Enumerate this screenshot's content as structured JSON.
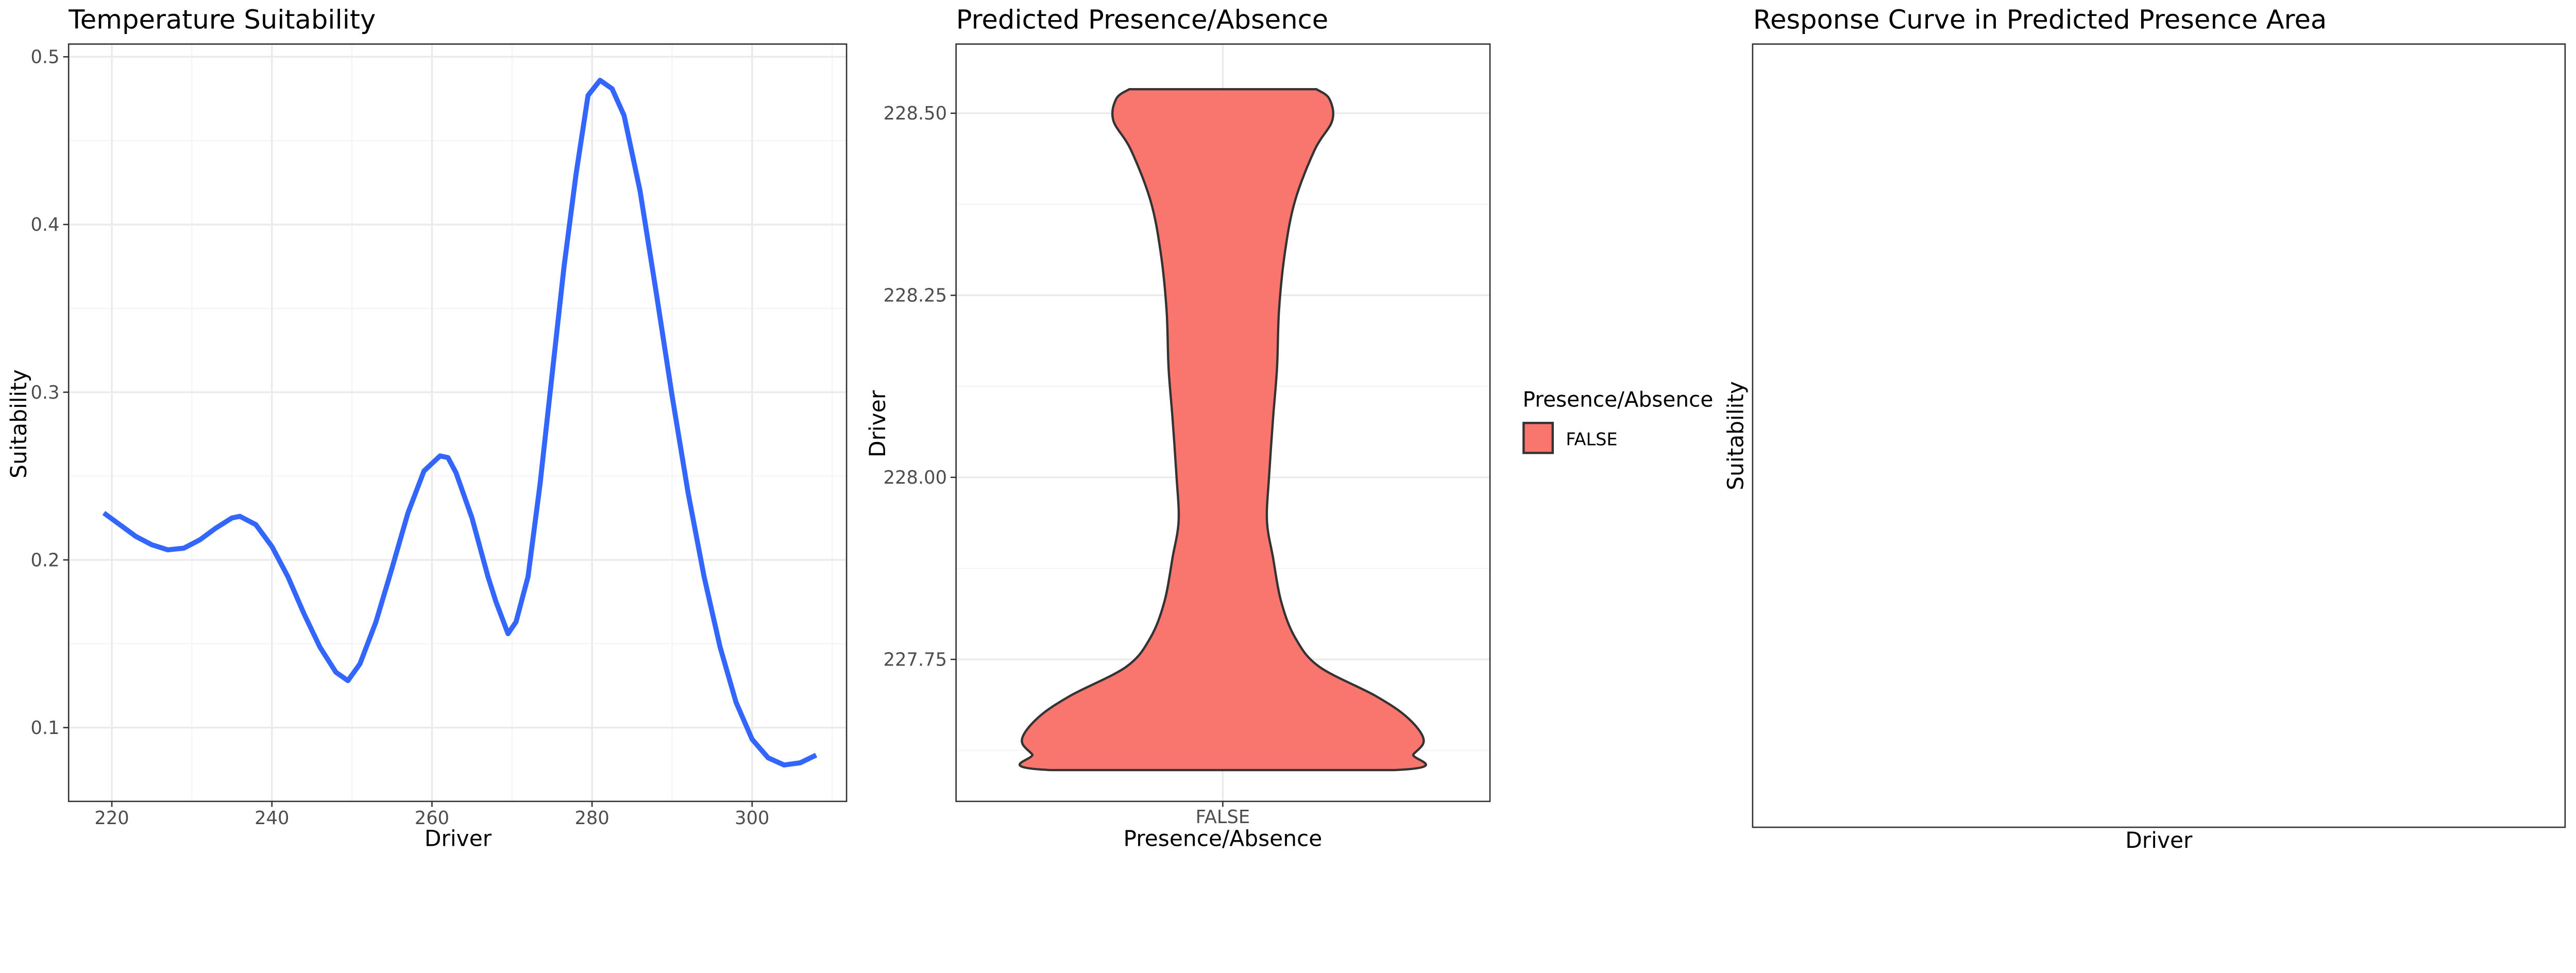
{
  "chart_data": [
    {
      "type": "line",
      "title": "Temperature Suitability",
      "xlabel": "Driver",
      "ylabel": "Suitability",
      "xlim": [
        214.6,
        311.8
      ],
      "ylim": [
        0.056,
        0.5076
      ],
      "xticks": [
        220,
        240,
        260,
        280,
        300
      ],
      "xtick_labels": [
        "220",
        "240",
        "260",
        "280",
        "300"
      ],
      "yticks": [
        0.1,
        0.2,
        0.3,
        0.4,
        0.5
      ],
      "ytick_labels": [
        "0.1",
        "0.2",
        "0.3",
        "0.4",
        "0.5"
      ],
      "grid": true,
      "line_color": "#3366FF",
      "series": [
        {
          "name": "Suitability",
          "x": [
            219,
            221,
            223,
            225,
            227,
            229,
            231,
            233,
            235,
            236,
            238,
            240,
            242,
            244,
            246,
            248,
            249.5,
            251,
            253,
            255,
            257,
            259,
            261,
            262,
            263,
            265,
            267,
            268,
            269.5,
            270.5,
            272,
            273.5,
            275,
            276.5,
            278,
            279.5,
            281,
            282.5,
            284,
            286,
            288,
            290,
            292,
            294,
            296,
            298,
            300,
            302,
            304,
            306,
            308
          ],
          "y": [
            0.228,
            0.221,
            0.214,
            0.209,
            0.206,
            0.207,
            0.212,
            0.219,
            0.225,
            0.226,
            0.221,
            0.208,
            0.19,
            0.168,
            0.148,
            0.133,
            0.128,
            0.138,
            0.163,
            0.195,
            0.228,
            0.253,
            0.262,
            0.261,
            0.252,
            0.225,
            0.19,
            0.175,
            0.156,
            0.163,
            0.19,
            0.245,
            0.31,
            0.375,
            0.43,
            0.477,
            0.486,
            0.481,
            0.465,
            0.42,
            0.36,
            0.298,
            0.24,
            0.19,
            0.148,
            0.115,
            0.093,
            0.082,
            0.0777,
            0.079,
            0.0836
          ]
        }
      ]
    },
    {
      "type": "violin",
      "title": "Predicted Presence/Absence",
      "xlabel": "Presence/Absence",
      "ylabel": "Driver",
      "categories": [
        "FALSE"
      ],
      "ylim": [
        227.555,
        228.595
      ],
      "yticks": [
        227.75,
        228.0,
        228.25,
        228.5
      ],
      "ytick_labels": [
        "227.75",
        "228.00",
        "228.25",
        "228.50"
      ],
      "fill_color": "#F8766D",
      "grid": true,
      "density": {
        "y": [
          228.533,
          228.52,
          228.49,
          228.45,
          228.38,
          228.31,
          228.23,
          228.15,
          228.08,
          228.0,
          227.94,
          227.89,
          227.83,
          227.78,
          227.74,
          227.7,
          227.67,
          227.64,
          227.62,
          227.598
        ],
        "relative_width": [
          0.466,
          0.53,
          0.545,
          0.458,
          0.36,
          0.31,
          0.28,
          0.27,
          0.25,
          0.23,
          0.22,
          0.25,
          0.29,
          0.36,
          0.48,
          0.76,
          0.92,
          1.0,
          0.95,
          0.855
        ]
      },
      "legend": {
        "title": "Presence/Absence",
        "entries": [
          "FALSE"
        ],
        "placement": "right"
      }
    },
    {
      "type": "line",
      "title": "Response Curve in Predicted Presence Area",
      "xlabel": "Driver",
      "ylabel": "Suitability",
      "series": [],
      "grid": false
    }
  ]
}
